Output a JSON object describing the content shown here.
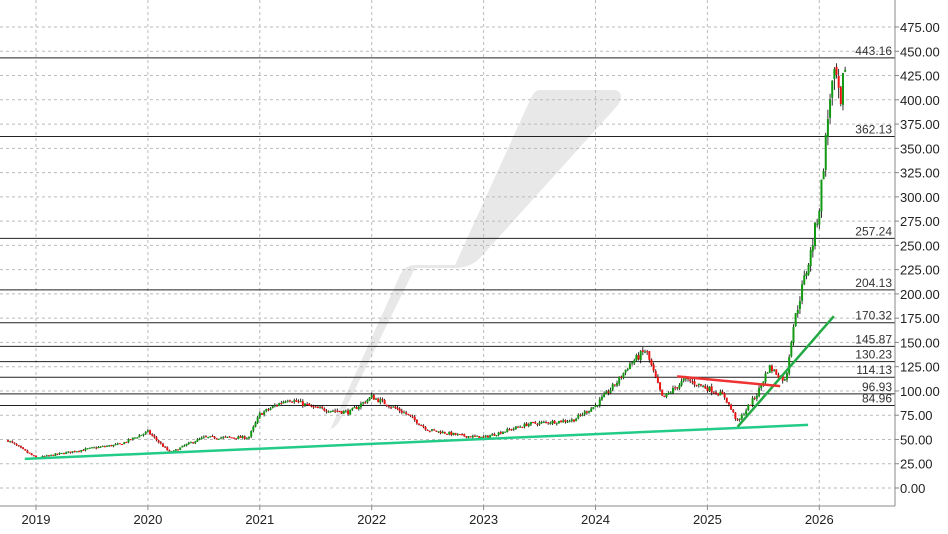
{
  "chart_data": {
    "type": "candlestick",
    "title": "",
    "xlabel": "",
    "ylabel": "",
    "ylim": [
      -25,
      490
    ],
    "xlim": [
      2018.75,
      2026.4
    ],
    "grid": true,
    "y_ticks": [
      "0.00",
      "25.00",
      "50.00",
      "75.00",
      "100.00",
      "125.00",
      "150.00",
      "175.00",
      "200.00",
      "225.00",
      "250.00",
      "275.00",
      "300.00",
      "325.00",
      "350.00",
      "375.00",
      "400.00",
      "425.00",
      "450.00",
      "475.00"
    ],
    "x_ticks": [
      "2019",
      "2020",
      "2021",
      "2022",
      "2023",
      "2024",
      "2025",
      "2026"
    ],
    "up_color": "#119911",
    "down_color": "#ee1111",
    "price_path": [
      [
        2018.75,
        49
      ],
      [
        2019.0,
        31
      ],
      [
        2019.25,
        36
      ],
      [
        2019.5,
        41
      ],
      [
        2019.75,
        45
      ],
      [
        2020.0,
        58
      ],
      [
        2020.2,
        36
      ],
      [
        2020.35,
        45
      ],
      [
        2020.5,
        52
      ],
      [
        2020.9,
        52
      ],
      [
        2021.0,
        76
      ],
      [
        2021.25,
        92
      ],
      [
        2021.5,
        82
      ],
      [
        2021.8,
        78
      ],
      [
        2022.0,
        94
      ],
      [
        2022.3,
        77
      ],
      [
        2022.5,
        60
      ],
      [
        2022.8,
        54
      ],
      [
        2023.0,
        52
      ],
      [
        2023.4,
        66
      ],
      [
        2023.8,
        70
      ],
      [
        2024.0,
        85
      ],
      [
        2024.2,
        110
      ],
      [
        2024.3,
        127
      ],
      [
        2024.45,
        142
      ],
      [
        2024.6,
        92
      ],
      [
        2024.8,
        112
      ],
      [
        2025.0,
        103
      ],
      [
        2025.15,
        95
      ],
      [
        2025.27,
        68
      ],
      [
        2025.45,
        98
      ],
      [
        2025.55,
        125
      ],
      [
        2025.7,
        110
      ],
      [
        2025.76,
        163
      ],
      [
        2025.85,
        208
      ],
      [
        2025.92,
        240
      ],
      [
        2026.0,
        290
      ],
      [
        2026.05,
        348
      ],
      [
        2026.1,
        410
      ],
      [
        2026.15,
        425
      ],
      [
        2026.19,
        385
      ],
      [
        2026.22,
        430
      ],
      [
        2026.24,
        443
      ]
    ],
    "horizontal_levels": [
      443.16,
      362.13,
      257.24,
      204.13,
      170.32,
      145.87,
      130.23,
      114.13,
      96.93,
      84.96
    ],
    "level_labels": [
      "443.16",
      "362.13",
      "257.24",
      "204.13",
      "170.32",
      "145.87",
      "130.23",
      "114.13",
      "96.93",
      "84.96"
    ],
    "trendlines": [
      {
        "color": "#22cc88",
        "from": [
          2018.9,
          30
        ],
        "to": [
          2025.9,
          65
        ]
      },
      {
        "color": "#22aa44",
        "from": [
          2025.27,
          63
        ],
        "to": [
          2026.13,
          177
        ]
      },
      {
        "color": "#ee3333",
        "from": [
          2024.73,
          115
        ],
        "to": [
          2025.65,
          105
        ]
      }
    ]
  }
}
